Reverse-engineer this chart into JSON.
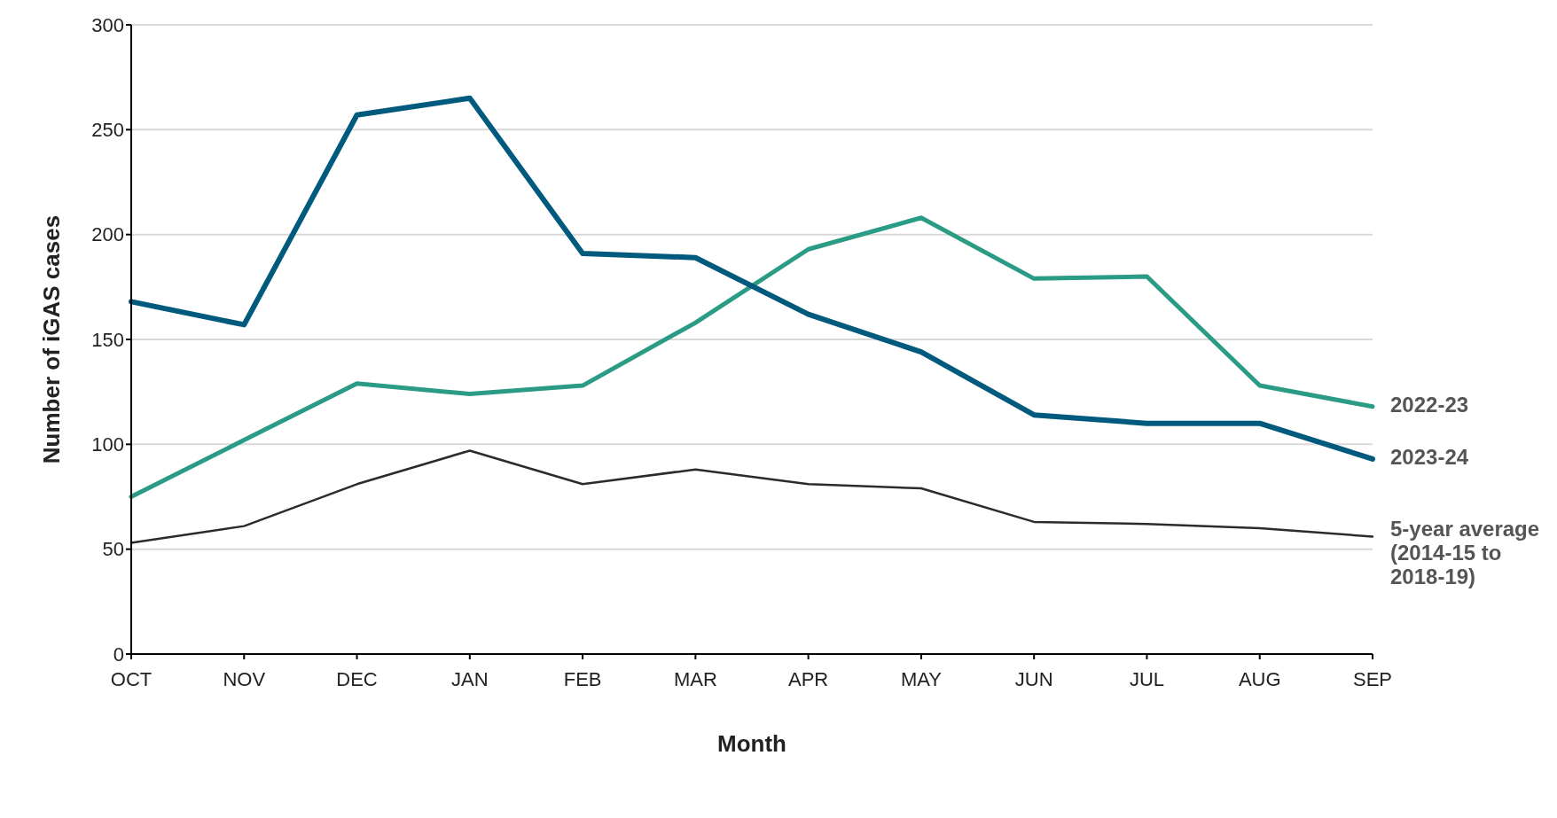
{
  "chart_data": {
    "type": "line",
    "xlabel": "Month",
    "ylabel": "Number of iGAS cases",
    "categories": [
      "OCT",
      "NOV",
      "DEC",
      "JAN",
      "FEB",
      "MAR",
      "APR",
      "MAY",
      "JUN",
      "JUL",
      "AUG",
      "SEP"
    ],
    "series": [
      {
        "name": "2022-23",
        "color": "#2a9b84",
        "values": [
          75,
          102,
          129,
          124,
          128,
          158,
          193,
          208,
          179,
          180,
          128,
          118
        ]
      },
      {
        "name": "2023-24",
        "color": "#005a7d",
        "values": [
          168,
          157,
          257,
          265,
          191,
          189,
          162,
          144,
          114,
          110,
          110,
          93
        ]
      },
      {
        "name": "5-year average (2014-15 to 2018-19)",
        "color": "#2b2b2b",
        "values": [
          53,
          61,
          81,
          97,
          81,
          88,
          81,
          79,
          63,
          62,
          60,
          56
        ]
      }
    ],
    "ylim": [
      0,
      300
    ],
    "yticks": [
      0,
      50,
      100,
      150,
      200,
      250,
      300
    ],
    "grid": "y",
    "legend": false,
    "marker": "none",
    "line_style": "solid"
  }
}
